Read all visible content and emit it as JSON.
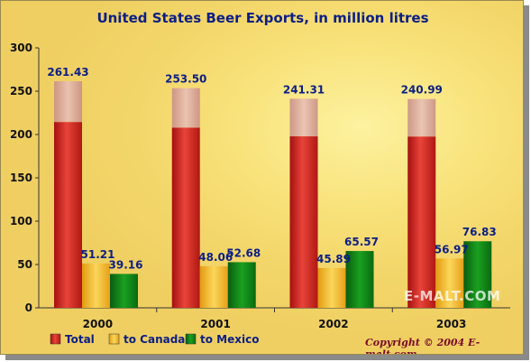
{
  "chart_data": {
    "type": "bar",
    "title": "United States Beer Exports, in million litres",
    "categories": [
      "2000",
      "2001",
      "2002",
      "2003"
    ],
    "series": [
      {
        "name": "Total",
        "values": [
          261.43,
          253.5,
          241.31,
          240.99
        ],
        "labels": [
          "261.43",
          "253.50",
          "241.31",
          "240.99"
        ]
      },
      {
        "name": "to Canada",
        "values": [
          51.21,
          48.06,
          45.89,
          56.97
        ],
        "labels": [
          "51.21",
          "48.06",
          "45.89",
          "56.97"
        ]
      },
      {
        "name": "to Mexico",
        "values": [
          39.16,
          52.68,
          65.57,
          76.83
        ],
        "labels": [
          "39.16",
          "52.68",
          "65.57",
          "76.83"
        ]
      }
    ],
    "ylim": [
      0,
      300
    ],
    "yticks": [
      0,
      50,
      100,
      150,
      200,
      250,
      300
    ],
    "legend_position": "bottom-left",
    "colors": {
      "Total": "#d8281e",
      "to Canada": "#f3b21e",
      "to Mexico": "#0d7a12"
    }
  },
  "copyright": "Copyright © 2004 E-malt.com",
  "watermark": "E-MALT.COM"
}
